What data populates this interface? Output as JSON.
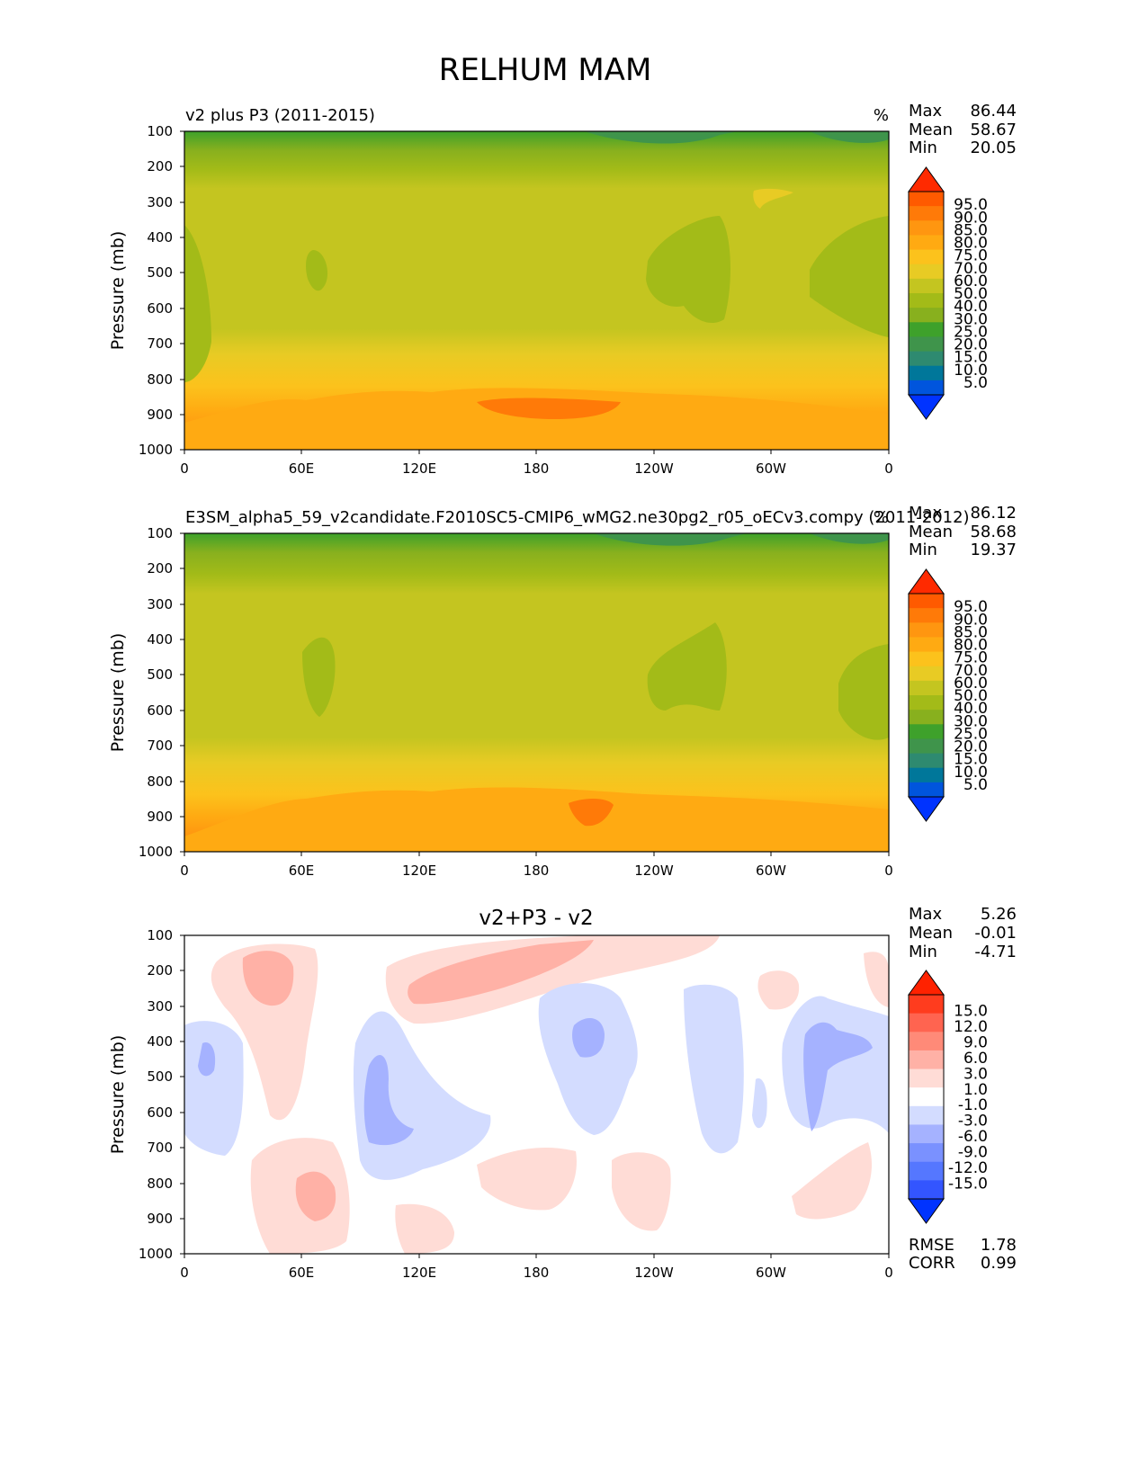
{
  "figure_title": "RELHUM MAM",
  "ylabel": "Pressure (mb)",
  "x_ticks": [
    "0",
    "60E",
    "120E",
    "180",
    "120W",
    "60W",
    "0"
  ],
  "y_ticks": [
    "100",
    "200",
    "300",
    "400",
    "500",
    "600",
    "700",
    "800",
    "900",
    "1000"
  ],
  "chart_data": [
    {
      "type": "heatmap",
      "title": "v2 plus P3 (2011-2015)",
      "units": "%",
      "xlabel": "",
      "ylabel": "Pressure (mb)",
      "xlim": [
        0,
        360
      ],
      "ylim": [
        1000,
        100
      ],
      "stats": [
        {
          "label": "Max",
          "value": "86.44"
        },
        {
          "label": "Mean",
          "value": "58.67"
        },
        {
          "label": "Min",
          "value": "20.05"
        }
      ],
      "colorbar_levels": [
        "95.0",
        "90.0",
        "85.0",
        "80.0",
        "75.0",
        "70.0",
        "60.0",
        "50.0",
        "40.0",
        "30.0",
        "25.0",
        "20.0",
        "15.0",
        "10.0",
        "5.0"
      ]
    },
    {
      "type": "heatmap",
      "title": "E3SM_alpha5_59_v2candidate.F2010SC5-CMIP6_wMG2.ne30pg2_r05_oECv3.compy (2011-2012)",
      "units": "%",
      "xlabel": "",
      "ylabel": "Pressure (mb)",
      "xlim": [
        0,
        360
      ],
      "ylim": [
        1000,
        100
      ],
      "stats": [
        {
          "label": "Max",
          "value": "86.12"
        },
        {
          "label": "Mean",
          "value": "58.68"
        },
        {
          "label": "Min",
          "value": "19.37"
        }
      ],
      "colorbar_levels": [
        "95.0",
        "90.0",
        "85.0",
        "80.0",
        "75.0",
        "70.0",
        "60.0",
        "50.0",
        "40.0",
        "30.0",
        "25.0",
        "20.0",
        "15.0",
        "10.0",
        "5.0"
      ]
    },
    {
      "type": "heatmap",
      "title": "v2+P3 - v2",
      "units": "",
      "xlabel": "",
      "ylabel": "Pressure (mb)",
      "xlim": [
        0,
        360
      ],
      "ylim": [
        1000,
        100
      ],
      "stats": [
        {
          "label": "Max",
          "value": "5.26"
        },
        {
          "label": "Mean",
          "value": "-0.01"
        },
        {
          "label": "Min",
          "value": "-4.71"
        }
      ],
      "colorbar_levels": [
        "15.0",
        "12.0",
        "9.0",
        "6.0",
        "3.0",
        "1.0",
        "-1.0",
        "-3.0",
        "-6.0",
        "-9.0",
        "-12.0",
        "-15.0"
      ],
      "extra_stats": [
        {
          "label": "RMSE",
          "value": "1.78"
        },
        {
          "label": "CORR",
          "value": "0.99"
        }
      ]
    }
  ],
  "colors": {
    "rel_cmap": [
      "#0033ff",
      "#0055dd",
      "#00779a",
      "#2e8a70",
      "#3f944b",
      "#3ea12b",
      "#88b01e",
      "#a3bb18",
      "#c4c520",
      "#e8cb24",
      "#fcc21c",
      "#ffaa12",
      "#ff9610",
      "#ff7a08",
      "#ff5a00",
      "#ff2a00"
    ],
    "diff_cmap": [
      "#0033ff",
      "#3355ff",
      "#5577ff",
      "#7a91ff",
      "#a5b2ff",
      "#d3dcff",
      "#ffffff",
      "#ffdcd6",
      "#ffb1a6",
      "#ff8a78",
      "#ff6450",
      "#ff3c1e",
      "#ff2200"
    ]
  }
}
